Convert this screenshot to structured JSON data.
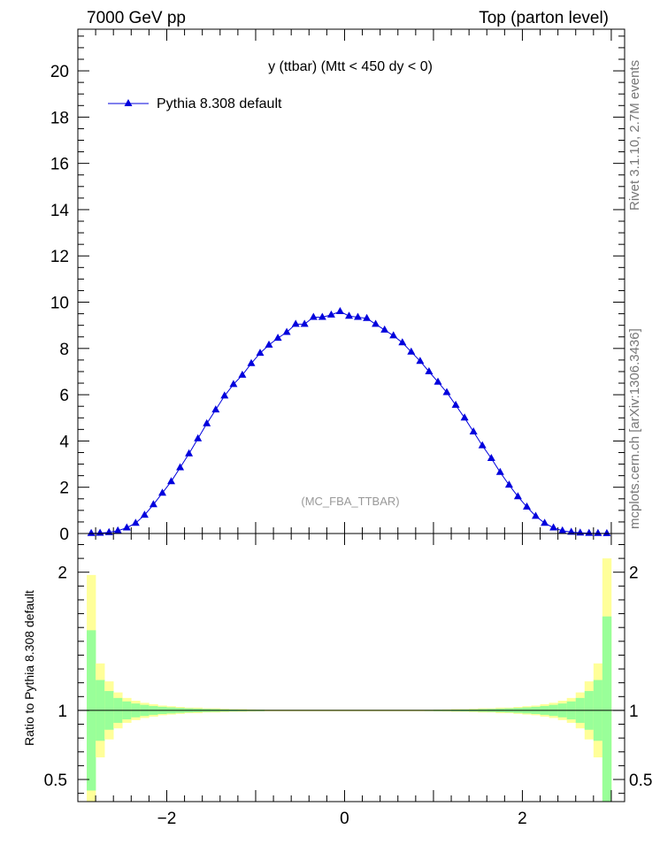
{
  "header": {
    "left": "7000 GeV pp",
    "right": "Top (parton level)"
  },
  "side_labels": {
    "rivet": "Rivet 3.1.10,  2.7M events",
    "mcplots": "mcplots.cern.ch [arXiv:1306.3436]"
  },
  "chart_data": [
    {
      "type": "line",
      "title": "y (ttbar) (Mtt < 450 dy < 0)",
      "watermark": "(MC_FBA_TTBAR)",
      "xlim": [
        -3.0,
        3.15
      ],
      "ylim": [
        0,
        21.8
      ],
      "yticks": [
        0,
        2,
        4,
        6,
        8,
        10,
        12,
        14,
        16,
        18,
        20
      ],
      "legend_position": "top-left",
      "color": "#0000dd",
      "series": [
        {
          "name": "Pythia 8.308 default",
          "marker": "triangle",
          "x": [
            -2.85,
            -2.75,
            -2.65,
            -2.55,
            -2.45,
            -2.35,
            -2.25,
            -2.15,
            -2.05,
            -1.95,
            -1.85,
            -1.75,
            -1.65,
            -1.55,
            -1.45,
            -1.35,
            -1.25,
            -1.15,
            -1.05,
            -0.95,
            -0.85,
            -0.75,
            -0.65,
            -0.55,
            -0.45,
            -0.35,
            -0.25,
            -0.15,
            -0.05,
            0.05,
            0.15,
            0.25,
            0.35,
            0.45,
            0.55,
            0.65,
            0.75,
            0.85,
            0.95,
            1.05,
            1.15,
            1.25,
            1.35,
            1.45,
            1.55,
            1.65,
            1.75,
            1.85,
            1.95,
            2.05,
            2.15,
            2.25,
            2.35,
            2.45,
            2.55,
            2.65,
            2.75,
            2.85,
            2.95
          ],
          "y": [
            0.01,
            0.02,
            0.05,
            0.12,
            0.25,
            0.45,
            0.8,
            1.25,
            1.75,
            2.25,
            2.85,
            3.45,
            4.1,
            4.75,
            5.35,
            5.95,
            6.45,
            6.85,
            7.35,
            7.8,
            8.15,
            8.45,
            8.7,
            9.05,
            9.05,
            9.35,
            9.35,
            9.45,
            9.6,
            9.4,
            9.35,
            9.3,
            9.05,
            8.8,
            8.55,
            8.25,
            7.85,
            7.45,
            7.0,
            6.55,
            6.1,
            5.55,
            5.0,
            4.4,
            3.8,
            3.25,
            2.65,
            2.1,
            1.6,
            1.15,
            0.75,
            0.45,
            0.25,
            0.12,
            0.06,
            0.03,
            0.015,
            0.01,
            0.005
          ]
        }
      ]
    },
    {
      "type": "area",
      "ylabel": "Ratio to Pythia 8.308 default",
      "xlim": [
        -3.0,
        3.15
      ],
      "ylim": [
        0.34,
        2.28
      ],
      "xticks": [
        -2,
        0,
        2
      ],
      "xticklabels": [
        "−2",
        "0",
        "2"
      ],
      "yticks": [
        0.5,
        1,
        2
      ],
      "yticklabels": [
        "0.5",
        "1",
        "2"
      ],
      "reference_line": 1,
      "colors": {
        "outer_band": "#ffff99",
        "inner_band": "#99ff99",
        "line": "#000000"
      },
      "bins": [
        -2.9,
        -2.8,
        -2.7,
        -2.6,
        -2.5,
        -2.4,
        -2.3,
        -2.2,
        -2.1,
        -2.0,
        -1.9,
        -1.8,
        -1.7,
        -1.6,
        -1.5,
        -1.4,
        -1.3,
        -1.2,
        -1.1,
        -1.0,
        -0.9,
        0.9,
        1.0,
        1.1,
        1.2,
        1.3,
        1.4,
        1.5,
        1.6,
        1.7,
        1.8,
        1.9,
        2.0,
        2.1,
        2.2,
        2.3,
        2.4,
        2.5,
        2.6,
        2.7,
        2.8,
        2.9,
        3.0
      ],
      "outer_band_halfwidth": [
        0.98,
        0.34,
        0.21,
        0.13,
        0.09,
        0.07,
        0.055,
        0.045,
        0.035,
        0.03,
        0.025,
        0.02,
        0.02,
        0.015,
        0.015,
        0.012,
        0.01,
        0.01,
        0.008,
        0.007,
        0.006,
        0.006,
        0.007,
        0.008,
        0.01,
        0.01,
        0.012,
        0.015,
        0.015,
        0.02,
        0.02,
        0.025,
        0.03,
        0.035,
        0.045,
        0.055,
        0.07,
        0.09,
        0.13,
        0.21,
        0.34,
        1.1
      ],
      "inner_band_halfwidth": [
        0.58,
        0.22,
        0.14,
        0.09,
        0.065,
        0.05,
        0.04,
        0.032,
        0.026,
        0.022,
        0.018,
        0.015,
        0.013,
        0.011,
        0.01,
        0.008,
        0.007,
        0.006,
        0.005,
        0.005,
        0.004,
        0.004,
        0.005,
        0.005,
        0.006,
        0.007,
        0.008,
        0.01,
        0.011,
        0.013,
        0.015,
        0.018,
        0.022,
        0.026,
        0.032,
        0.04,
        0.05,
        0.065,
        0.09,
        0.14,
        0.22,
        0.68
      ]
    }
  ]
}
